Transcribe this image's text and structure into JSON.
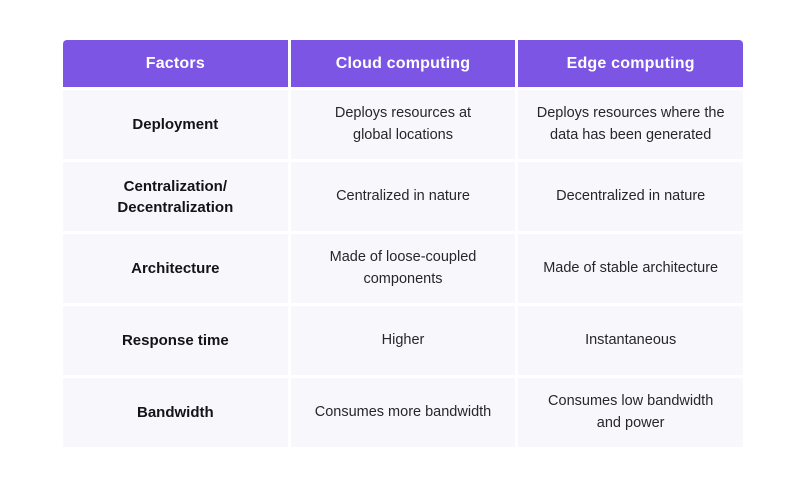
{
  "chart_data": {
    "type": "table",
    "accent_color": "#7C55E5",
    "row_background": "#F8F8FC",
    "header_text_color": "#FFFFFF",
    "columns": [
      "Factors",
      "Cloud computing",
      "Edge computing"
    ],
    "rows": [
      {
        "factor": "Deployment",
        "cloud": "Deploys resources at\nglobal locations",
        "edge": "Deploys resources where the\ndata has been generated"
      },
      {
        "factor": "Centralization/\nDecentralization",
        "cloud": "Centralized in nature",
        "edge": "Decentralized in nature"
      },
      {
        "factor": "Architecture",
        "cloud": "Made of loose-coupled\ncomponents",
        "edge": "Made of stable architecture"
      },
      {
        "factor": "Response time",
        "cloud": "Higher",
        "edge": "Instantaneous"
      },
      {
        "factor": "Bandwidth",
        "cloud": "Consumes more bandwidth",
        "edge": "Consumes low bandwidth\nand power"
      }
    ]
  }
}
